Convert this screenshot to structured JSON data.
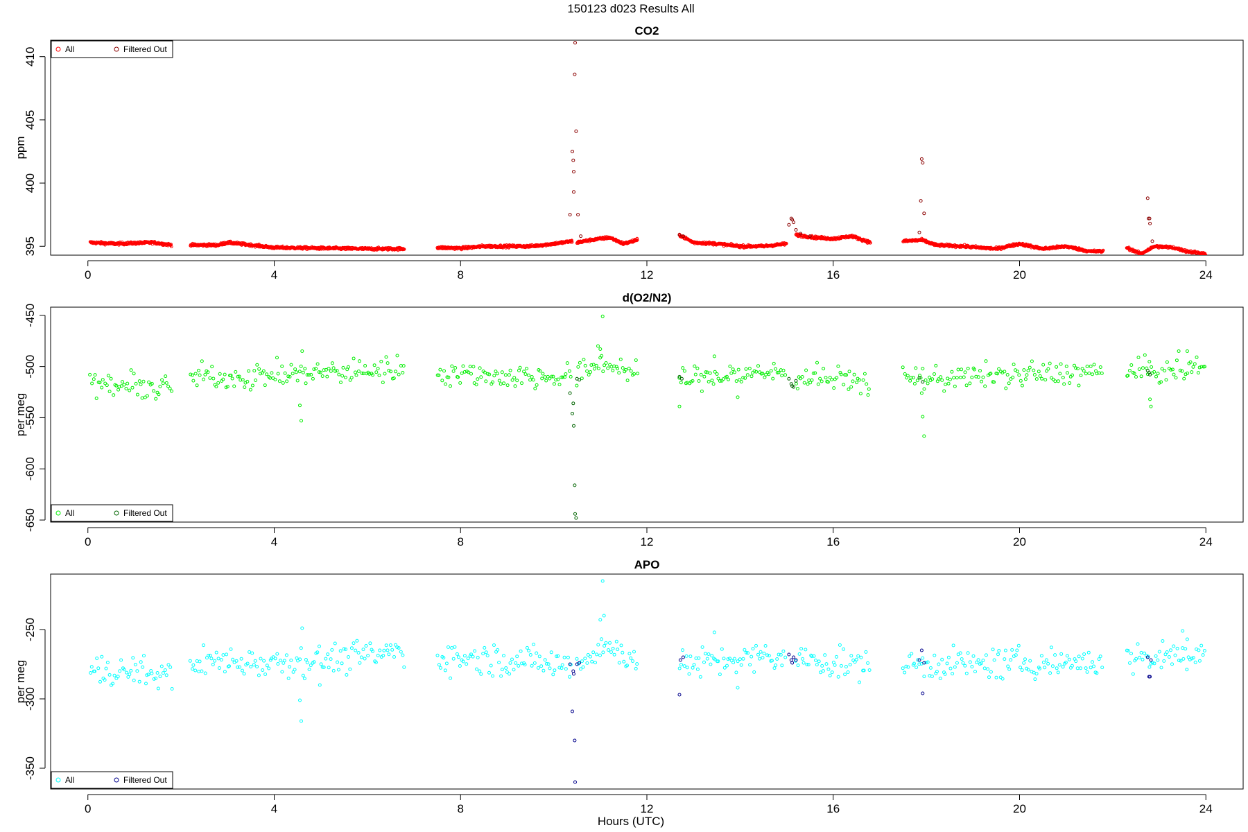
{
  "figure": {
    "title": "150123   d023   Results All",
    "xlabel": "Hours (UTC)"
  },
  "chart_data": [
    {
      "type": "scatter",
      "title": "CO2",
      "ylabel": "ppm",
      "xlim": [
        -0.8,
        24.8
      ],
      "ylim": [
        394.3,
        411.3
      ],
      "xticks": [
        0,
        4,
        8,
        12,
        16,
        20,
        24
      ],
      "yticks": [
        395,
        400,
        405,
        410
      ],
      "legend_position": "top-left",
      "colors": {
        "all": "#ff0000",
        "filtered": "#8b0000"
      },
      "series": [
        {
          "name": "All",
          "style": "dense",
          "segments": [
            [
              [
                0.05,
                395.3
              ],
              [
                0.6,
                395.2
              ],
              [
                1.0,
                395.25
              ],
              [
                1.4,
                395.3
              ],
              [
                1.8,
                395.1
              ]
            ],
            [
              [
                2.2,
                395.1
              ],
              [
                2.8,
                395.1
              ],
              [
                3.0,
                395.3
              ],
              [
                3.5,
                395.1
              ],
              [
                4.0,
                394.9
              ],
              [
                5.0,
                394.85
              ],
              [
                6.0,
                394.8
              ],
              [
                6.8,
                394.8
              ]
            ],
            [
              [
                7.5,
                394.9
              ],
              [
                8.0,
                394.85
              ],
              [
                8.5,
                395.0
              ],
              [
                9.0,
                395.0
              ],
              [
                9.5,
                395.0
              ],
              [
                10.0,
                395.2
              ],
              [
                10.4,
                395.4
              ]
            ],
            [
              [
                10.5,
                395.3
              ],
              [
                10.8,
                395.5
              ],
              [
                11.2,
                395.7
              ],
              [
                11.5,
                395.2
              ],
              [
                11.8,
                395.5
              ]
            ],
            [
              [
                12.7,
                395.9
              ],
              [
                13.0,
                395.3
              ],
              [
                13.5,
                395.2
              ],
              [
                14.0,
                395.0
              ],
              [
                14.5,
                395.0
              ],
              [
                15.0,
                395.2
              ]
            ],
            [
              [
                15.2,
                395.9
              ],
              [
                15.6,
                395.7
              ],
              [
                16.0,
                395.6
              ],
              [
                16.4,
                395.8
              ],
              [
                16.8,
                395.3
              ]
            ],
            [
              [
                17.5,
                395.4
              ],
              [
                17.9,
                395.5
              ],
              [
                18.2,
                395.1
              ],
              [
                18.8,
                395.0
              ],
              [
                19.5,
                394.8
              ],
              [
                20.0,
                395.2
              ],
              [
                20.5,
                394.8
              ],
              [
                21.0,
                395.0
              ],
              [
                21.5,
                394.6
              ],
              [
                21.8,
                394.6
              ]
            ],
            [
              [
                22.3,
                394.9
              ],
              [
                22.6,
                394.4
              ],
              [
                22.9,
                395.0
              ],
              [
                23.3,
                394.9
              ],
              [
                23.6,
                394.6
              ],
              [
                24.0,
                394.4
              ]
            ]
          ]
        },
        {
          "name": "Filtered Out",
          "style": "sparse",
          "points": [
            [
              10.35,
              397.5
            ],
            [
              10.4,
              402.5
            ],
            [
              10.42,
              401.8
            ],
            [
              10.43,
              400.9
            ],
            [
              10.43,
              399.3
            ],
            [
              10.45,
              408.6
            ],
            [
              10.46,
              411.1
            ],
            [
              10.48,
              404.1
            ],
            [
              10.52,
              397.5
            ],
            [
              10.58,
              395.8
            ],
            [
              12.7,
              395.9
            ],
            [
              12.78,
              395.8
            ],
            [
              15.05,
              396.7
            ],
            [
              15.1,
              397.2
            ],
            [
              15.12,
              397.1
            ],
            [
              15.15,
              396.9
            ],
            [
              15.2,
              396.3
            ],
            [
              15.3,
              396.0
            ],
            [
              15.5,
              395.8
            ],
            [
              17.85,
              396.1
            ],
            [
              17.9,
              401.9
            ],
            [
              17.92,
              401.6
            ],
            [
              17.88,
              398.6
            ],
            [
              17.95,
              397.6
            ],
            [
              22.75,
              398.8
            ],
            [
              22.77,
              397.2
            ],
            [
              22.79,
              397.2
            ],
            [
              22.8,
              396.8
            ],
            [
              22.85,
              395.4
            ]
          ]
        }
      ]
    },
    {
      "type": "scatter",
      "title": "d(O2/N2)",
      "ylabel": "per meg",
      "xlim": [
        -0.8,
        24.8
      ],
      "ylim": [
        -652,
        -442
      ],
      "xticks": [
        0,
        4,
        8,
        12,
        16,
        20,
        24
      ],
      "yticks": [
        -650,
        -600,
        -550,
        -500,
        -450
      ],
      "legend_position": "bottom-left",
      "colors": {
        "all": "#00ee00",
        "filtered": "#006400"
      },
      "series": [
        {
          "name": "All",
          "style": "scatter",
          "segments": [
            [
              [
                0.05,
                -518
              ],
              [
                1.0,
                -520
              ],
              [
                1.8,
                -522
              ]
            ],
            [
              [
                2.2,
                -510
              ],
              [
                3.5,
                -510
              ],
              [
                5.0,
                -506
              ],
              [
                6.8,
                -502
              ]
            ],
            [
              [
                7.5,
                -505
              ],
              [
                9.0,
                -510
              ],
              [
                10.4,
                -510
              ]
            ],
            [
              [
                10.5,
                -510
              ],
              [
                11.0,
                -495
              ],
              [
                11.8,
                -508
              ]
            ],
            [
              [
                12.7,
                -512
              ],
              [
                14.0,
                -508
              ],
              [
                15.0,
                -505
              ]
            ],
            [
              [
                15.2,
                -510
              ],
              [
                16.0,
                -512
              ],
              [
                16.8,
                -515
              ]
            ],
            [
              [
                17.5,
                -512
              ],
              [
                19.0,
                -510
              ],
              [
                21.8,
                -505
              ]
            ],
            [
              [
                22.3,
                -505
              ],
              [
                23.0,
                -505
              ],
              [
                24.0,
                -500
              ]
            ]
          ],
          "points": [
            [
              4.6,
              -485
            ],
            [
              4.55,
              -538
            ],
            [
              4.58,
              -553
            ],
            [
              10.95,
              -480
            ],
            [
              11.0,
              -483
            ],
            [
              11.05,
              -451
            ],
            [
              12.7,
              -539
            ],
            [
              13.45,
              -490
            ],
            [
              13.95,
              -530
            ],
            [
              17.9,
              -526
            ],
            [
              17.92,
              -549
            ],
            [
              17.95,
              -568
            ],
            [
              22.8,
              -532
            ],
            [
              22.82,
              -539
            ],
            [
              23.6,
              -485
            ]
          ]
        },
        {
          "name": "Filtered Out",
          "style": "sparse",
          "points": [
            [
              10.35,
              -526
            ],
            [
              10.4,
              -546
            ],
            [
              10.42,
              -536
            ],
            [
              10.43,
              -558
            ],
            [
              10.45,
              -616
            ],
            [
              10.46,
              -644
            ],
            [
              10.48,
              -648
            ],
            [
              10.5,
              -512
            ],
            [
              10.55,
              -513
            ],
            [
              12.7,
              -510
            ],
            [
              12.75,
              -512
            ],
            [
              15.05,
              -512
            ],
            [
              15.1,
              -517
            ],
            [
              15.12,
              -519
            ],
            [
              15.15,
              -520
            ],
            [
              15.2,
              -514
            ],
            [
              17.85,
              -511
            ],
            [
              17.92,
              -515
            ],
            [
              22.75,
              -504
            ],
            [
              22.78,
              -506
            ],
            [
              22.8,
              -508
            ]
          ]
        }
      ]
    },
    {
      "type": "scatter",
      "title": "APO",
      "ylabel": "per meg",
      "xlim": [
        -0.8,
        24.8
      ],
      "ylim": [
        -365,
        -210
      ],
      "xticks": [
        0,
        4,
        8,
        12,
        16,
        20,
        24
      ],
      "yticks": [
        -350,
        -300,
        -250
      ],
      "legend_position": "bottom-left",
      "colors": {
        "all": "#00ffff",
        "filtered": "#00008b"
      },
      "series": [
        {
          "name": "All",
          "style": "scatter",
          "segments": [
            [
              [
                0.05,
                -280
              ],
              [
                1.0,
                -280
              ],
              [
                1.8,
                -284
              ]
            ],
            [
              [
                2.2,
                -273
              ],
              [
                3.5,
                -273
              ],
              [
                5.0,
                -272
              ],
              [
                6.8,
                -266
              ]
            ],
            [
              [
                7.5,
                -270
              ],
              [
                9.0,
                -272
              ],
              [
                10.4,
                -275
              ]
            ],
            [
              [
                10.5,
                -275
              ],
              [
                11.0,
                -262
              ],
              [
                11.8,
                -270
              ]
            ],
            [
              [
                12.7,
                -276
              ],
              [
                14.0,
                -272
              ],
              [
                15.0,
                -270
              ]
            ],
            [
              [
                15.2,
                -272
              ],
              [
                16.0,
                -274
              ],
              [
                16.8,
                -276
              ]
            ],
            [
              [
                17.5,
                -275
              ],
              [
                19.0,
                -275
              ],
              [
                21.8,
                -273
              ]
            ],
            [
              [
                22.3,
                -272
              ],
              [
                23.0,
                -270
              ],
              [
                24.0,
                -266
              ]
            ]
          ],
          "points": [
            [
              4.6,
              -249
            ],
            [
              4.55,
              -301
            ],
            [
              4.58,
              -316
            ],
            [
              11.0,
              -243
            ],
            [
              11.05,
              -215
            ],
            [
              11.08,
              -240
            ],
            [
              13.45,
              -252
            ],
            [
              13.95,
              -292
            ],
            [
              4.98,
              -290
            ],
            [
              23.5,
              -251
            ],
            [
              23.6,
              -257
            ]
          ]
        },
        {
          "name": "Filtered Out",
          "style": "sparse",
          "points": [
            [
              10.35,
              -275
            ],
            [
              10.4,
              -309
            ],
            [
              10.42,
              -280
            ],
            [
              10.43,
              -282
            ],
            [
              10.45,
              -330
            ],
            [
              10.46,
              -360
            ],
            [
              10.5,
              -275
            ],
            [
              10.55,
              -274
            ],
            [
              12.7,
              -297
            ],
            [
              12.72,
              -272
            ],
            [
              12.78,
              -270
            ],
            [
              15.05,
              -268
            ],
            [
              15.1,
              -272
            ],
            [
              15.12,
              -274
            ],
            [
              15.15,
              -270
            ],
            [
              15.2,
              -272
            ],
            [
              17.85,
              -272
            ],
            [
              17.9,
              -265
            ],
            [
              17.92,
              -296
            ],
            [
              17.95,
              -274
            ],
            [
              22.75,
              -270
            ],
            [
              22.78,
              -284
            ],
            [
              22.8,
              -284
            ],
            [
              22.82,
              -272
            ]
          ]
        }
      ]
    }
  ]
}
